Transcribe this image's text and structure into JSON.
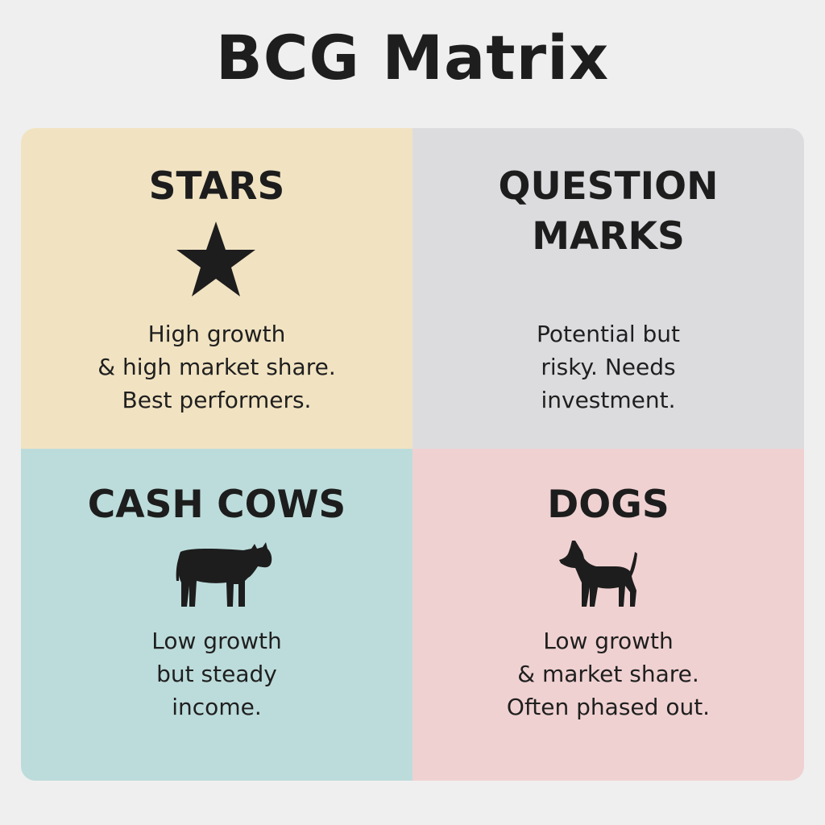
{
  "title": "BCG Matrix",
  "quadrants": {
    "stars": {
      "label": "STARS",
      "icon": "star-icon",
      "description": "High growth\n& high market share.\nBest performers.",
      "color": "#f1e3c2"
    },
    "question_marks": {
      "label": "QUESTION\nMARKS",
      "description": "Potential but\nrisky. Needs\ninvestment.",
      "color": "#dcdcdf"
    },
    "cash_cows": {
      "label": "CASH COWS",
      "icon": "cow-icon",
      "description": "Low growth\nbut steady\nincome.",
      "color": "#bcdcdb"
    },
    "dogs": {
      "label": "DOGS",
      "icon": "dog-icon",
      "description": "Low growth\n& market share.\nOften phased out.",
      "color": "#f0d1d1"
    }
  }
}
